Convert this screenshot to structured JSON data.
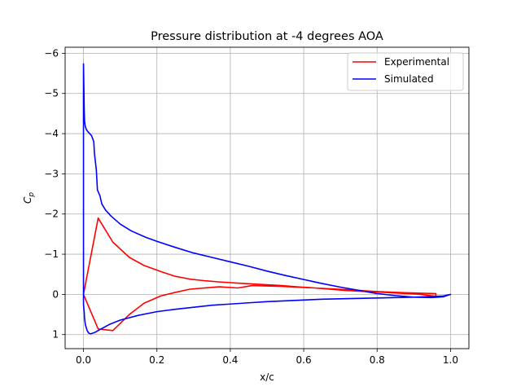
{
  "chart_data": {
    "type": "line",
    "title": "Pressure distribution at -4 degrees AOA",
    "xlabel": "x/c",
    "ylabel": "C_p",
    "xlim": [
      -0.05,
      1.05
    ],
    "ylim": [
      1.35,
      -6.15
    ],
    "y_inverted": true,
    "grid": true,
    "legend_position": "upper-right",
    "x_ticks": [
      {
        "value": 0.0,
        "label": "0.0"
      },
      {
        "value": 0.2,
        "label": "0.2"
      },
      {
        "value": 0.4,
        "label": "0.4"
      },
      {
        "value": 0.6,
        "label": "0.6"
      },
      {
        "value": 0.8,
        "label": "0.8"
      },
      {
        "value": 1.0,
        "label": "1.0"
      }
    ],
    "y_ticks": [
      {
        "value": -6,
        "label": "−6"
      },
      {
        "value": -5,
        "label": "−5"
      },
      {
        "value": -4,
        "label": "−4"
      },
      {
        "value": -3,
        "label": "−3"
      },
      {
        "value": -2,
        "label": "−2"
      },
      {
        "value": -1,
        "label": "−1"
      },
      {
        "value": 0,
        "label": "0"
      },
      {
        "value": 1,
        "label": "1"
      }
    ],
    "series": [
      {
        "name": "Experimental",
        "color": "#ff0000",
        "points": [
          [
            0.0,
            0.0
          ],
          [
            0.04,
            -1.9
          ],
          [
            0.08,
            -1.3
          ],
          [
            0.125,
            -0.92
          ],
          [
            0.165,
            -0.72
          ],
          [
            0.21,
            -0.57
          ],
          [
            0.25,
            -0.45
          ],
          [
            0.29,
            -0.38
          ],
          [
            0.33,
            -0.34
          ],
          [
            0.37,
            -0.31
          ],
          [
            0.42,
            -0.28
          ],
          [
            0.46,
            -0.26
          ],
          [
            0.5,
            -0.24
          ],
          [
            0.54,
            -0.22
          ],
          [
            0.58,
            -0.19
          ],
          [
            0.63,
            -0.16
          ],
          [
            0.67,
            -0.13
          ],
          [
            0.71,
            -0.1
          ],
          [
            0.75,
            -0.08
          ],
          [
            0.8,
            -0.06
          ],
          [
            0.84,
            -0.04
          ],
          [
            0.88,
            -0.02
          ],
          [
            0.92,
            0.0
          ],
          [
            0.96,
            0.05
          ],
          [
            0.96,
            -0.02
          ],
          [
            0.88,
            -0.04
          ],
          [
            0.8,
            -0.07
          ],
          [
            0.71,
            -0.12
          ],
          [
            0.63,
            -0.16
          ],
          [
            0.54,
            -0.2
          ],
          [
            0.46,
            -0.22
          ],
          [
            0.42,
            -0.16
          ],
          [
            0.37,
            -0.19
          ],
          [
            0.29,
            -0.13
          ],
          [
            0.25,
            -0.05
          ],
          [
            0.21,
            0.04
          ],
          [
            0.165,
            0.22
          ],
          [
            0.125,
            0.5
          ],
          [
            0.08,
            0.9
          ],
          [
            0.04,
            0.86
          ],
          [
            0.0,
            0.0
          ]
        ]
      },
      {
        "name": "Simulated",
        "color": "#0000ff",
        "points": [
          [
            0.0,
            -5.75
          ],
          [
            0.001,
            -5.2
          ],
          [
            0.002,
            -4.6
          ],
          [
            0.003,
            -4.3
          ],
          [
            0.005,
            -4.18
          ],
          [
            0.008,
            -4.1
          ],
          [
            0.012,
            -4.05
          ],
          [
            0.017,
            -4.0
          ],
          [
            0.022,
            -3.95
          ],
          [
            0.028,
            -3.8
          ],
          [
            0.03,
            -3.5
          ],
          [
            0.035,
            -3.1
          ],
          [
            0.038,
            -2.6
          ],
          [
            0.045,
            -2.45
          ],
          [
            0.05,
            -2.25
          ],
          [
            0.06,
            -2.1
          ],
          [
            0.075,
            -1.95
          ],
          [
            0.1,
            -1.75
          ],
          [
            0.13,
            -1.58
          ],
          [
            0.17,
            -1.42
          ],
          [
            0.2,
            -1.32
          ],
          [
            0.25,
            -1.17
          ],
          [
            0.3,
            -1.03
          ],
          [
            0.35,
            -0.92
          ],
          [
            0.4,
            -0.81
          ],
          [
            0.45,
            -0.7
          ],
          [
            0.5,
            -0.58
          ],
          [
            0.55,
            -0.47
          ],
          [
            0.6,
            -0.37
          ],
          [
            0.65,
            -0.27
          ],
          [
            0.7,
            -0.18
          ],
          [
            0.75,
            -0.1
          ],
          [
            0.8,
            -0.02
          ],
          [
            0.85,
            0.03
          ],
          [
            0.9,
            0.07
          ],
          [
            0.95,
            0.08
          ],
          [
            0.98,
            0.06
          ],
          [
            1.0,
            0.0
          ],
          [
            0.98,
            0.04
          ],
          [
            0.95,
            0.05
          ],
          [
            0.9,
            0.07
          ],
          [
            0.85,
            0.08
          ],
          [
            0.8,
            0.09
          ],
          [
            0.75,
            0.1
          ],
          [
            0.7,
            0.11
          ],
          [
            0.65,
            0.12
          ],
          [
            0.6,
            0.14
          ],
          [
            0.55,
            0.16
          ],
          [
            0.5,
            0.18
          ],
          [
            0.45,
            0.21
          ],
          [
            0.4,
            0.24
          ],
          [
            0.35,
            0.27
          ],
          [
            0.3,
            0.32
          ],
          [
            0.25,
            0.37
          ],
          [
            0.2,
            0.43
          ],
          [
            0.15,
            0.52
          ],
          [
            0.1,
            0.64
          ],
          [
            0.07,
            0.75
          ],
          [
            0.05,
            0.85
          ],
          [
            0.03,
            0.95
          ],
          [
            0.02,
            0.98
          ],
          [
            0.015,
            0.97
          ],
          [
            0.01,
            0.9
          ],
          [
            0.005,
            0.75
          ],
          [
            0.003,
            0.6
          ],
          [
            0.002,
            0.45
          ],
          [
            0.0,
            0.25
          ],
          [
            0.0,
            -5.75
          ]
        ]
      }
    ]
  }
}
